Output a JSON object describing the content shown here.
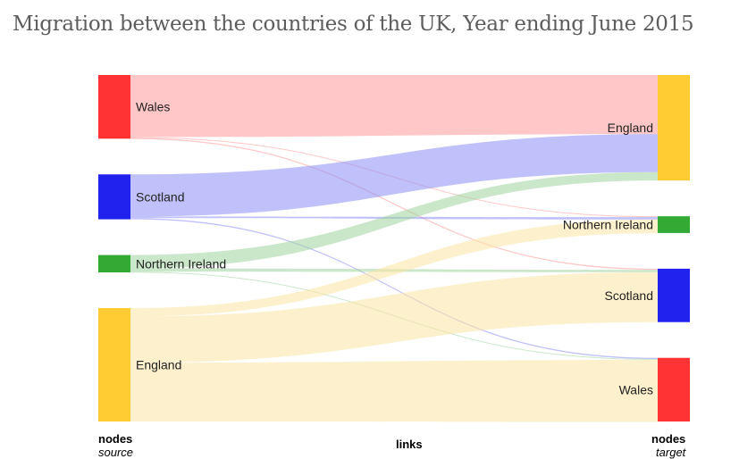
{
  "title": "Migration between the countries of the UK, Year ending June 2015",
  "captions": {
    "source_top": "nodes",
    "source_bottom": "source",
    "links": "links",
    "target_top": "nodes",
    "target_bottom": "target"
  },
  "chart_data": {
    "type": "sankey",
    "source_nodes": [
      {
        "id": "s_wales",
        "label": "Wales",
        "color": "#ff3333"
      },
      {
        "id": "s_scotland",
        "label": "Scotland",
        "color": "#2222ee"
      },
      {
        "id": "s_ni",
        "label": "Northern Ireland",
        "color": "#33aa33"
      },
      {
        "id": "s_england",
        "label": "England",
        "color": "#ffcc33"
      }
    ],
    "target_nodes": [
      {
        "id": "t_england",
        "label": "England",
        "color": "#ffcc33"
      },
      {
        "id": "t_ni",
        "label": "Northern Ireland",
        "color": "#33aa33"
      },
      {
        "id": "t_scotland",
        "label": "Scotland",
        "color": "#2222ee"
      },
      {
        "id": "t_wales",
        "label": "Wales",
        "color": "#ff3333"
      }
    ],
    "link_colors": {
      "s_wales": "#ff9999",
      "s_scotland": "#8c8cf5",
      "s_ni": "#9fd39f",
      "s_england": "#fbe3a2"
    },
    "links": [
      {
        "source": "s_wales",
        "target": "t_england",
        "value": 70
      },
      {
        "source": "s_wales",
        "target": "t_ni",
        "value": 0.5
      },
      {
        "source": "s_wales",
        "target": "t_scotland",
        "value": 1.3
      },
      {
        "source": "s_scotland",
        "target": "t_england",
        "value": 45
      },
      {
        "source": "s_scotland",
        "target": "t_ni",
        "value": 1.7
      },
      {
        "source": "s_scotland",
        "target": "t_wales",
        "value": 1.3
      },
      {
        "source": "s_ni",
        "target": "t_england",
        "value": 10
      },
      {
        "source": "s_ni",
        "target": "t_scotland",
        "value": 2.5
      },
      {
        "source": "s_ni",
        "target": "t_wales",
        "value": 0.5
      },
      {
        "source": "s_england",
        "target": "t_ni",
        "value": 10
      },
      {
        "source": "s_england",
        "target": "t_scotland",
        "value": 55
      },
      {
        "source": "s_england",
        "target": "t_wales",
        "value": 70
      }
    ]
  }
}
